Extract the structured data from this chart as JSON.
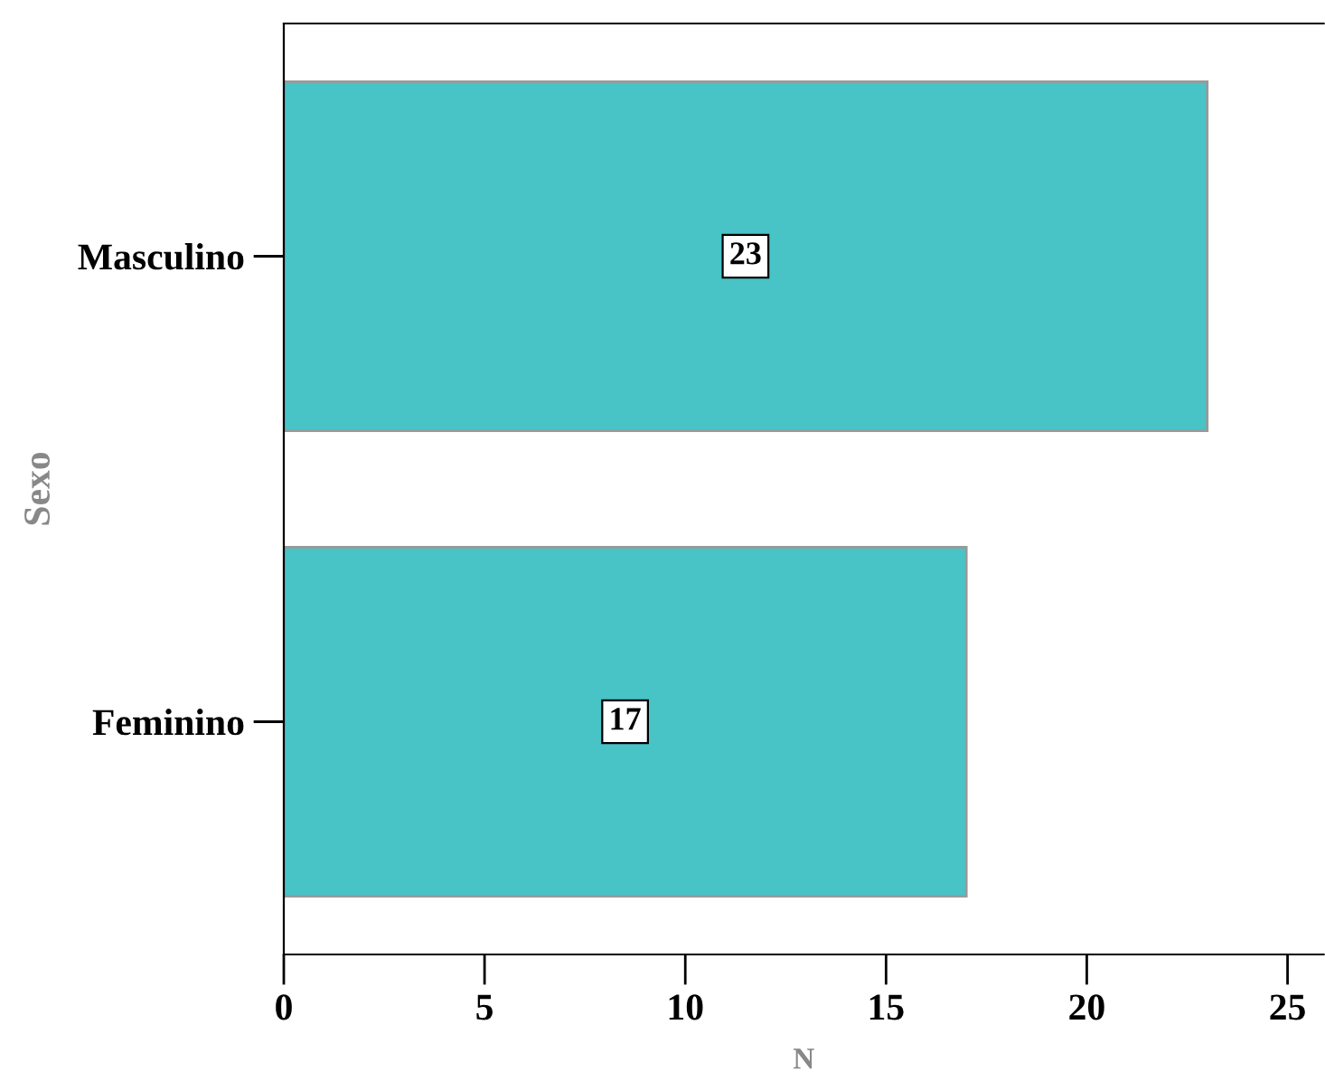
{
  "chart_data": {
    "type": "bar",
    "orientation": "horizontal",
    "xlabel": "N",
    "ylabel": "Sexo",
    "categories": [
      "Masculino",
      "Feminino"
    ],
    "values": [
      23,
      17
    ],
    "color": "#48c3c6",
    "xlim": [
      0,
      25.9
    ],
    "xticks": [
      0,
      5,
      10,
      15,
      20,
      25
    ],
    "grid": false,
    "data_labels": true
  }
}
